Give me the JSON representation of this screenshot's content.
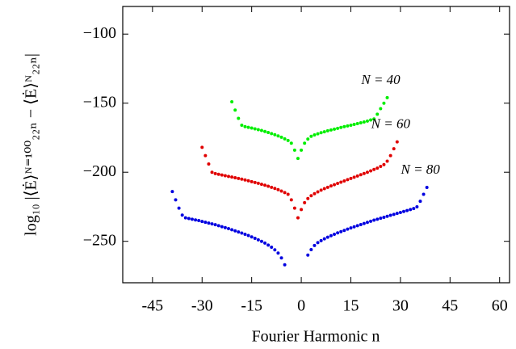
{
  "chart_data": {
    "type": "scatter",
    "xlabel": "Fourier Harmonic n",
    "ylabel": "log₁₀ |⟨Ė⟩ᴺ⁼¹⁰⁰₂₂ₙ − ⟨Ė⟩ᴺ₂₂ₙ|",
    "xlim": [
      -54,
      63
    ],
    "ylim": [
      -280,
      -80
    ],
    "xticks": [
      -45,
      -30,
      -15,
      0,
      15,
      30,
      45,
      60
    ],
    "yticks": [
      {
        "value": -100,
        "label": "−100"
      },
      {
        "value": -150,
        "label": "−150"
      },
      {
        "value": -200,
        "label": "−200"
      },
      {
        "value": -250,
        "label": "−250"
      }
    ],
    "series": [
      {
        "name": "N = 40",
        "color": "#00ee00",
        "x": [
          -21,
          -20,
          -19,
          -18,
          -17,
          -16,
          -15,
          -14,
          -13,
          -12,
          -11,
          -10,
          -9,
          -8,
          -7,
          -6,
          -5,
          -4,
          -3,
          -2,
          -1,
          0,
          1,
          2,
          3,
          4,
          5,
          6,
          7,
          8,
          9,
          10,
          11,
          12,
          13,
          14,
          15,
          16,
          17,
          18,
          19,
          20,
          21,
          22,
          23,
          24,
          25,
          26
        ],
        "values": [
          -149,
          -155,
          -161,
          -166,
          -167,
          -167.5,
          -168,
          -168.6,
          -169.2,
          -169.8,
          -170.5,
          -171.2,
          -172,
          -172.8,
          -173.7,
          -174.7,
          -175.8,
          -177,
          -179,
          -184,
          -190,
          -184,
          -179,
          -176,
          -174,
          -173,
          -172.2,
          -171.4,
          -170.7,
          -170,
          -169.4,
          -168.8,
          -168.2,
          -167.6,
          -167,
          -166.5,
          -166,
          -165.4,
          -164.8,
          -164.2,
          -163.6,
          -163,
          -162.2,
          -161.4,
          -158,
          -154,
          -150,
          -146
        ]
      },
      {
        "name": "N = 60",
        "color": "#e00000",
        "x": [
          -30,
          -29,
          -28,
          -27,
          -26,
          -25,
          -24,
          -23,
          -22,
          -21,
          -20,
          -19,
          -18,
          -17,
          -16,
          -15,
          -14,
          -13,
          -12,
          -11,
          -10,
          -9,
          -8,
          -7,
          -6,
          -5,
          -4,
          -3,
          -2,
          -1,
          0,
          1,
          2,
          3,
          4,
          5,
          6,
          7,
          8,
          9,
          10,
          11,
          12,
          13,
          14,
          15,
          16,
          17,
          18,
          19,
          20,
          21,
          22,
          23,
          24,
          25,
          26,
          27,
          28,
          29
        ],
        "values": [
          -182,
          -188,
          -194,
          -200,
          -201,
          -201.5,
          -202,
          -202.5,
          -203,
          -203.5,
          -204,
          -204.5,
          -205,
          -205.6,
          -206.2,
          -206.8,
          -207.4,
          -208,
          -208.7,
          -209.4,
          -210.1,
          -210.9,
          -211.7,
          -212.6,
          -213.6,
          -214.7,
          -216,
          -220,
          -226,
          -233,
          -227,
          -222,
          -219,
          -217,
          -215.5,
          -214.2,
          -213,
          -211.9,
          -210.9,
          -209.9,
          -209,
          -208.1,
          -207.2,
          -206.3,
          -205.4,
          -204.5,
          -203.6,
          -202.7,
          -201.8,
          -200.9,
          -200,
          -199,
          -198,
          -197,
          -195.8,
          -194.5,
          -192,
          -188,
          -183,
          -178
        ]
      },
      {
        "name": "N = 80",
        "color": "#0000e0",
        "x": [
          -39,
          -38,
          -37,
          -36,
          -35,
          -34,
          -33,
          -32,
          -31,
          -30,
          -29,
          -28,
          -27,
          -26,
          -25,
          -24,
          -23,
          -22,
          -21,
          -20,
          -19,
          -18,
          -17,
          -16,
          -15,
          -14,
          -13,
          -12,
          -11,
          -10,
          -9,
          -8,
          -7,
          -6,
          -5,
          2,
          3,
          4,
          5,
          6,
          7,
          8,
          9,
          10,
          11,
          12,
          13,
          14,
          15,
          16,
          17,
          18,
          19,
          20,
          21,
          22,
          23,
          24,
          25,
          26,
          27,
          28,
          29,
          30,
          31,
          32,
          33,
          34,
          35,
          36,
          37,
          38
        ],
        "values": [
          -214,
          -220,
          -226,
          -231,
          -233,
          -233.5,
          -234,
          -234.5,
          -235,
          -235.6,
          -236.2,
          -236.8,
          -237.4,
          -238,
          -238.7,
          -239.4,
          -240.1,
          -240.8,
          -241.6,
          -242.4,
          -243.2,
          -244,
          -244.9,
          -245.8,
          -246.8,
          -247.8,
          -248.9,
          -250,
          -251.3,
          -252.7,
          -254.3,
          -256.2,
          -258.5,
          -262,
          -267,
          -260,
          -256,
          -253,
          -251,
          -249.5,
          -248.2,
          -247,
          -245.9,
          -244.9,
          -243.9,
          -243,
          -242.1,
          -241.2,
          -240.3,
          -239.5,
          -238.7,
          -237.9,
          -237.1,
          -236.3,
          -235.5,
          -234.7,
          -234,
          -233.3,
          -232.6,
          -231.9,
          -231.2,
          -230.5,
          -229.8,
          -229.1,
          -228.4,
          -227.7,
          -227,
          -226.3,
          -225,
          -221,
          -216,
          -211
        ]
      }
    ]
  }
}
